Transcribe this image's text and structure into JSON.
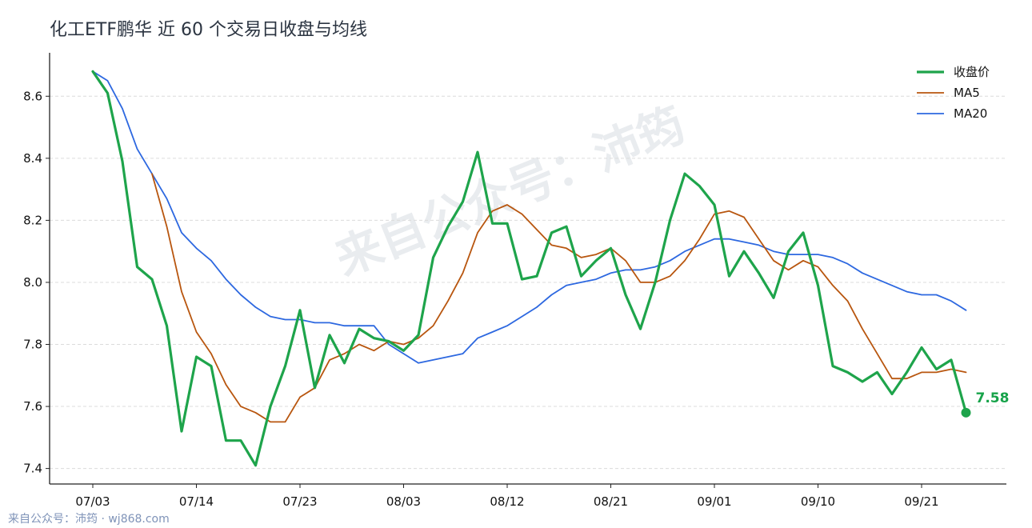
{
  "footer": "来自公众号：沛筠 · wj868.com",
  "watermark": "来自公众号：沛筠",
  "colors": {
    "close": "#1ea44b",
    "ma5": "#b8560f",
    "ma20": "#2d68e0"
  },
  "chart_data": {
    "type": "line",
    "title": "化工ETF鹏华 近 60 个交易日收盘与均线",
    "xlabel": "",
    "ylabel": "",
    "ylim": [
      7.35,
      8.74
    ],
    "yticks": [
      7.4,
      7.6,
      7.8,
      8.0,
      8.2,
      8.4,
      8.6
    ],
    "ytick_labels": [
      "7.4",
      "7.6",
      "7.8",
      "8.0",
      "8.2",
      "8.4",
      "8.6"
    ],
    "xticks": [
      {
        "index": 0,
        "label": "07/03"
      },
      {
        "index": 7,
        "label": "07/14"
      },
      {
        "index": 14,
        "label": "07/23"
      },
      {
        "index": 21,
        "label": "08/03"
      },
      {
        "index": 28,
        "label": "08/12"
      },
      {
        "index": 35,
        "label": "08/21"
      },
      {
        "index": 42,
        "label": "09/01"
      },
      {
        "index": 49,
        "label": "09/10"
      },
      {
        "index": 56,
        "label": "09/21"
      }
    ],
    "grid": "horizontal-dashed",
    "legend_position": "top-right",
    "last_value_label": "7.58",
    "series": [
      {
        "name": "收盘价",
        "values": [
          8.68,
          8.61,
          8.39,
          8.05,
          8.01,
          7.86,
          7.52,
          7.76,
          7.73,
          7.49,
          7.49,
          7.41,
          7.6,
          7.73,
          7.91,
          7.66,
          7.83,
          7.74,
          7.85,
          7.82,
          7.81,
          7.78,
          7.83,
          8.08,
          8.18,
          8.26,
          8.42,
          8.19,
          8.19,
          8.01,
          8.02,
          8.16,
          8.18,
          8.02,
          8.07,
          8.11,
          7.96,
          7.85,
          8.0,
          8.2,
          8.35,
          8.31,
          8.25,
          8.02,
          8.1,
          8.03,
          7.95,
          8.1,
          8.16,
          7.99,
          7.73,
          7.71,
          7.68,
          7.71,
          7.64,
          7.71,
          7.79,
          7.72,
          7.75,
          7.58
        ]
      },
      {
        "name": "MA5",
        "values": [
          null,
          null,
          null,
          null,
          8.35,
          8.18,
          7.97,
          7.84,
          7.77,
          7.67,
          7.6,
          7.58,
          7.55,
          7.55,
          7.63,
          7.66,
          7.75,
          7.77,
          7.8,
          7.78,
          7.81,
          7.8,
          7.82,
          7.86,
          7.94,
          8.03,
          8.16,
          8.23,
          8.25,
          8.22,
          8.17,
          8.12,
          8.11,
          8.08,
          8.09,
          8.11,
          8.07,
          8.0,
          8.0,
          8.02,
          8.07,
          8.14,
          8.22,
          8.23,
          8.21,
          8.14,
          8.07,
          8.04,
          8.07,
          8.05,
          7.99,
          7.94,
          7.85,
          7.77,
          7.69,
          7.69,
          7.71,
          7.71,
          7.72,
          7.71
        ]
      },
      {
        "name": "MA20",
        "values": [
          8.68,
          8.65,
          8.56,
          8.43,
          8.35,
          8.27,
          8.16,
          8.11,
          8.07,
          8.01,
          7.96,
          7.92,
          7.89,
          7.88,
          7.88,
          7.87,
          7.87,
          7.86,
          7.86,
          7.86,
          7.8,
          7.77,
          7.74,
          7.75,
          7.76,
          7.77,
          7.82,
          7.84,
          7.86,
          7.89,
          7.92,
          7.96,
          7.99,
          8.0,
          8.01,
          8.03,
          8.04,
          8.04,
          8.05,
          8.07,
          8.1,
          8.12,
          8.14,
          8.14,
          8.13,
          8.12,
          8.1,
          8.09,
          8.09,
          8.09,
          8.08,
          8.06,
          8.03,
          8.01,
          7.99,
          7.97,
          7.96,
          7.96,
          7.94,
          7.91
        ]
      }
    ]
  }
}
